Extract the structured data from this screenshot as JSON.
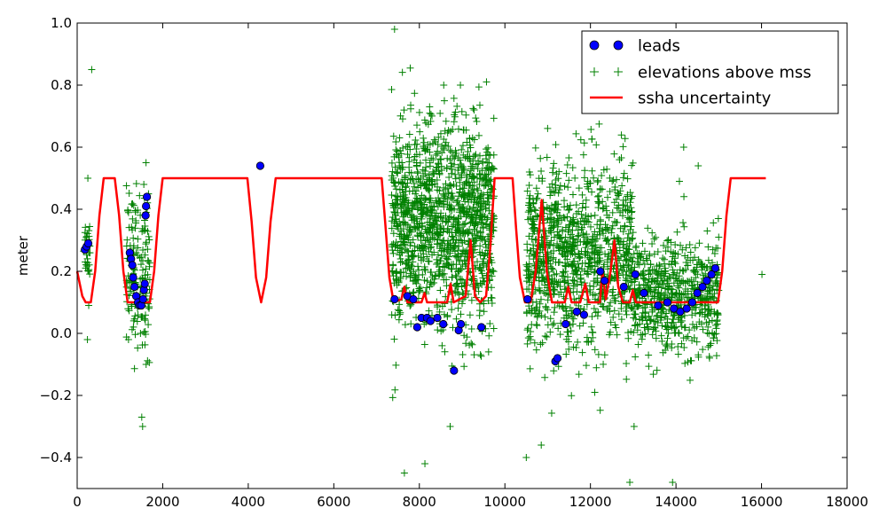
{
  "chart_data": {
    "type": "scatter",
    "title": "",
    "xlabel": "",
    "ylabel": "meter",
    "xlim": [
      0,
      18000
    ],
    "ylim": [
      -0.5,
      1.0
    ],
    "xticks": [
      0,
      2000,
      4000,
      6000,
      8000,
      10000,
      12000,
      14000,
      16000,
      18000
    ],
    "yticks": [
      -0.4,
      -0.2,
      0.0,
      0.2,
      0.4,
      0.6,
      0.8,
      1.0
    ],
    "xtick_labels": [
      "0",
      "2000",
      "4000",
      "6000",
      "8000",
      "10000",
      "12000",
      "14000",
      "16000",
      "18000"
    ],
    "ytick_labels": [
      "−0.4",
      "−0.2",
      "0.0",
      "0.2",
      "0.4",
      "0.6",
      "0.8",
      "1.0"
    ],
    "legend_position": "top-right",
    "colors": {
      "leads": "#0000ff",
      "elevations": "#008000",
      "uncertainty": "#ff0000"
    },
    "series": [
      {
        "name": "leads",
        "label": "leads",
        "marker": "circle",
        "points": [
          [
            180,
            0.27
          ],
          [
            220,
            0.28
          ],
          [
            260,
            0.29
          ],
          [
            1230,
            0.26
          ],
          [
            1260,
            0.24
          ],
          [
            1290,
            0.22
          ],
          [
            1310,
            0.18
          ],
          [
            1340,
            0.15
          ],
          [
            1380,
            0.12
          ],
          [
            1420,
            0.1
          ],
          [
            1460,
            0.09
          ],
          [
            1500,
            0.09
          ],
          [
            1540,
            0.11
          ],
          [
            1560,
            0.14
          ],
          [
            1580,
            0.16
          ],
          [
            1600,
            0.38
          ],
          [
            1610,
            0.41
          ],
          [
            1630,
            0.44
          ],
          [
            4280,
            0.54
          ],
          [
            7420,
            0.11
          ],
          [
            7720,
            0.12
          ],
          [
            7860,
            0.11
          ],
          [
            7950,
            0.02
          ],
          [
            8050,
            0.05
          ],
          [
            8180,
            0.05
          ],
          [
            8260,
            0.04
          ],
          [
            8420,
            0.05
          ],
          [
            8560,
            0.03
          ],
          [
            8810,
            -0.12
          ],
          [
            8920,
            0.01
          ],
          [
            8970,
            0.03
          ],
          [
            9450,
            0.02
          ],
          [
            10530,
            0.11
          ],
          [
            11180,
            -0.09
          ],
          [
            11230,
            -0.08
          ],
          [
            11420,
            0.03
          ],
          [
            11680,
            0.07
          ],
          [
            11850,
            0.06
          ],
          [
            12230,
            0.2
          ],
          [
            12330,
            0.17
          ],
          [
            12780,
            0.15
          ],
          [
            13050,
            0.19
          ],
          [
            13250,
            0.13
          ],
          [
            13580,
            0.09
          ],
          [
            13800,
            0.1
          ],
          [
            13950,
            0.08
          ],
          [
            14100,
            0.07
          ],
          [
            14250,
            0.08
          ],
          [
            14380,
            0.1
          ],
          [
            14500,
            0.13
          ],
          [
            14620,
            0.15
          ],
          [
            14720,
            0.17
          ],
          [
            14830,
            0.19
          ],
          [
            14920,
            0.21
          ]
        ]
      },
      {
        "name": "elevations",
        "label": "elevations above mss",
        "marker": "plus",
        "clusters": [
          {
            "x_range": [
              150,
              300
            ],
            "mean": 0.28,
            "spread": 0.05,
            "count": 28
          },
          {
            "x_range": [
              1150,
              1700
            ],
            "mean": 0.2,
            "spread": 0.13,
            "count": 160
          },
          {
            "x_range": [
              7350,
              9750
            ],
            "mean": 0.35,
            "spread": 0.16,
            "count": 1300
          },
          {
            "x_range": [
              10500,
              13000
            ],
            "mean": 0.25,
            "spread": 0.15,
            "count": 1000
          },
          {
            "x_range": [
              13000,
              15000
            ],
            "mean": 0.12,
            "spread": 0.09,
            "count": 600
          }
        ],
        "outliers": [
          [
            250,
            0.5
          ],
          [
            340,
            0.85
          ],
          [
            240,
            -0.02
          ],
          [
            270,
            0.09
          ],
          [
            1610,
            0.55
          ],
          [
            1530,
            -0.3
          ],
          [
            1510,
            -0.27
          ],
          [
            1200,
            -0.02
          ],
          [
            7420,
            0.98
          ],
          [
            8570,
            0.8
          ],
          [
            8960,
            0.8
          ],
          [
            9280,
            0.72
          ],
          [
            8720,
            -0.3
          ],
          [
            7650,
            -0.45
          ],
          [
            8130,
            -0.42
          ],
          [
            10500,
            -0.4
          ],
          [
            10850,
            -0.36
          ],
          [
            12920,
            -0.48
          ],
          [
            13020,
            -0.3
          ],
          [
            13920,
            -0.48
          ],
          [
            14180,
            0.6
          ],
          [
            14080,
            0.49
          ],
          [
            14520,
            0.54
          ],
          [
            14730,
            0.33
          ],
          [
            14990,
            0.37
          ],
          [
            16010,
            0.19
          ]
        ]
      },
      {
        "name": "uncertainty",
        "label": "ssha uncertainty",
        "marker": "line",
        "points": [
          [
            0,
            0.2
          ],
          [
            120,
            0.12
          ],
          [
            200,
            0.1
          ],
          [
            320,
            0.1
          ],
          [
            420,
            0.2
          ],
          [
            520,
            0.38
          ],
          [
            620,
            0.5
          ],
          [
            880,
            0.5
          ],
          [
            980,
            0.38
          ],
          [
            1080,
            0.2
          ],
          [
            1180,
            0.1
          ],
          [
            1700,
            0.1
          ],
          [
            1800,
            0.2
          ],
          [
            1900,
            0.38
          ],
          [
            2000,
            0.5
          ],
          [
            3980,
            0.5
          ],
          [
            4080,
            0.36
          ],
          [
            4180,
            0.18
          ],
          [
            4300,
            0.1
          ],
          [
            4420,
            0.18
          ],
          [
            4520,
            0.36
          ],
          [
            4640,
            0.5
          ],
          [
            7120,
            0.5
          ],
          [
            7200,
            0.36
          ],
          [
            7300,
            0.18
          ],
          [
            7400,
            0.1
          ],
          [
            7580,
            0.11
          ],
          [
            7650,
            0.15
          ],
          [
            7720,
            0.1
          ],
          [
            8050,
            0.1
          ],
          [
            8120,
            0.13
          ],
          [
            8180,
            0.1
          ],
          [
            8650,
            0.1
          ],
          [
            8730,
            0.16
          ],
          [
            8800,
            0.1
          ],
          [
            9080,
            0.12
          ],
          [
            9200,
            0.3
          ],
          [
            9300,
            0.12
          ],
          [
            9420,
            0.1
          ],
          [
            9560,
            0.12
          ],
          [
            9660,
            0.28
          ],
          [
            9760,
            0.5
          ],
          [
            10180,
            0.5
          ],
          [
            10260,
            0.34
          ],
          [
            10350,
            0.18
          ],
          [
            10470,
            0.1
          ],
          [
            10600,
            0.1
          ],
          [
            10720,
            0.2
          ],
          [
            10860,
            0.43
          ],
          [
            10980,
            0.2
          ],
          [
            11100,
            0.1
          ],
          [
            11400,
            0.1
          ],
          [
            11480,
            0.15
          ],
          [
            11560,
            0.1
          ],
          [
            11760,
            0.1
          ],
          [
            11880,
            0.16
          ],
          [
            11960,
            0.1
          ],
          [
            12220,
            0.1
          ],
          [
            12280,
            0.2
          ],
          [
            12360,
            0.11
          ],
          [
            12470,
            0.2
          ],
          [
            12560,
            0.3
          ],
          [
            12650,
            0.15
          ],
          [
            12760,
            0.1
          ],
          [
            12920,
            0.1
          ],
          [
            12990,
            0.14
          ],
          [
            13060,
            0.1
          ],
          [
            14980,
            0.1
          ],
          [
            15080,
            0.2
          ],
          [
            15180,
            0.38
          ],
          [
            15280,
            0.5
          ],
          [
            16100,
            0.5
          ]
        ]
      }
    ]
  }
}
